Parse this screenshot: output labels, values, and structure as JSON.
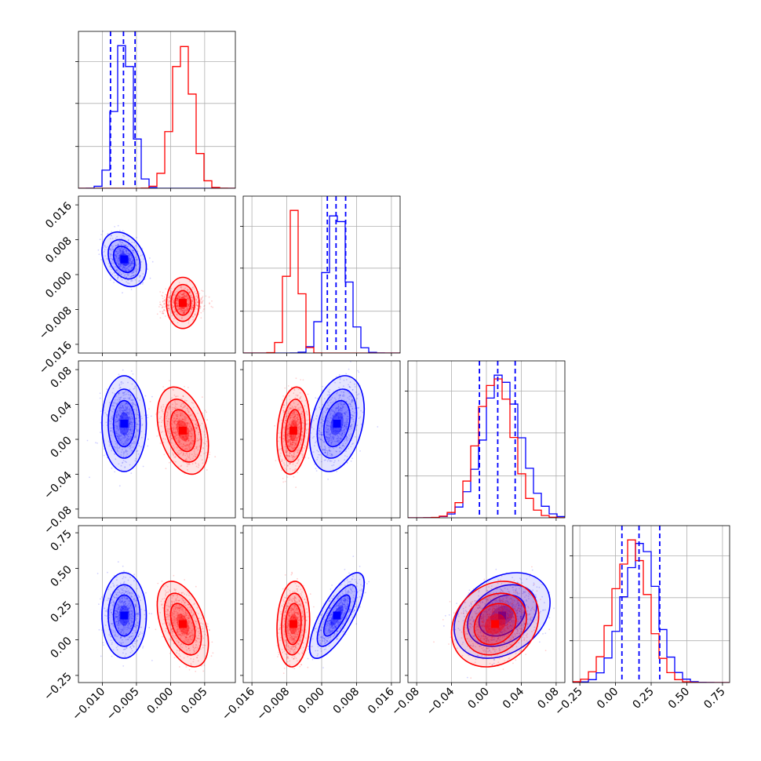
{
  "chart_data": {
    "type": "corner",
    "grid_lines": true,
    "params": [
      {
        "range": [
          -0.0135,
          0.0095
        ],
        "ticks": [
          -0.01,
          -0.005,
          0.0,
          0.005
        ],
        "tick_labels": [
          "−0.010",
          "−0.005",
          "0.000",
          "0.005"
        ]
      },
      {
        "range": [
          -0.018,
          0.018
        ],
        "ticks": [
          -0.016,
          -0.008,
          0.0,
          0.008,
          0.016
        ],
        "tick_labels": [
          "−0.016",
          "−0.008",
          "0.000",
          "0.008",
          "0.016"
        ]
      },
      {
        "range": [
          -0.09,
          0.09
        ],
        "ticks": [
          -0.08,
          -0.04,
          0.0,
          0.04,
          0.08
        ],
        "tick_labels": [
          "−0.08",
          "−0.04",
          "0.00",
          "0.04",
          "0.08"
        ]
      },
      {
        "range": [
          -0.3,
          0.8
        ],
        "ticks": [
          -0.25,
          0.0,
          0.25,
          0.5,
          0.75
        ],
        "tick_labels": [
          "−0.25",
          "0.00",
          "0.25",
          "0.50",
          "0.75"
        ]
      }
    ],
    "series": [
      {
        "color": "#0000ff",
        "means": [
          -0.0068,
          0.0035,
          0.018,
          0.17
        ],
        "sds": [
          0.0013,
          0.0025,
          0.022,
          0.12
        ],
        "quantiles": [
          [
            -0.0088,
            -0.0069,
            -0.0052
          ],
          [
            0.0013,
            0.0033,
            0.0055
          ],
          [
            -0.008,
            0.013,
            0.033
          ],
          [
            0.045,
            0.165,
            0.31
          ]
        ],
        "correlations": {
          "0-1": -0.3,
          "0-2": 0.0,
          "0-3": 0.0,
          "1-2": 0.3,
          "1-3": 0.75,
          "2-3": 0.3
        }
      },
      {
        "color": "#ff0000",
        "means": [
          0.0018,
          -0.0065,
          0.01,
          0.11
        ],
        "sds": [
          0.0015,
          0.0015,
          0.02,
          0.12
        ],
        "quantiles": [],
        "correlations": {
          "0-1": 0.0,
          "0-2": -0.35,
          "0-3": -0.45,
          "1-2": 0.2,
          "1-3": 0.1,
          "2-3": 0.2
        }
      }
    ]
  }
}
